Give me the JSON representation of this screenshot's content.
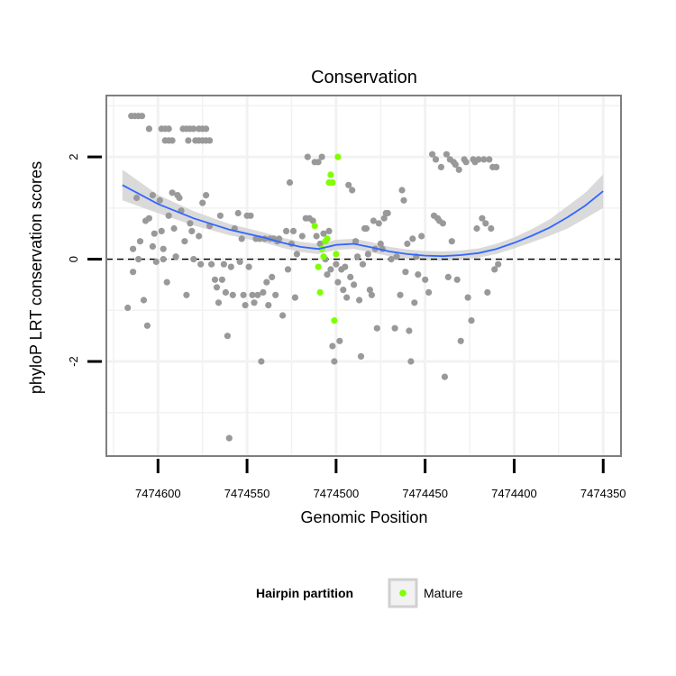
{
  "chart_data": {
    "type": "scatter",
    "title": "Conservation",
    "xlabel": "Genomic Position",
    "ylabel": "phyloP LRT conservation scores",
    "x_reversed": true,
    "xlim": [
      7474629,
      7474340
    ],
    "ylim": [
      -3.85,
      3.2
    ],
    "x_ticks": [
      7474600,
      7474550,
      7474500,
      7474450,
      7474400,
      7474350
    ],
    "x_tick_labels": [
      "7474600",
      "7474550",
      "7474500",
      "7474450",
      "7474400",
      "7474350"
    ],
    "y_ticks": [
      2,
      0,
      -2
    ],
    "y_tick_labels": [
      "2",
      "0",
      "-2"
    ],
    "x_minor_grid": [
      7474625,
      7474575,
      7474525,
      7474475,
      7474425,
      7474375
    ],
    "y_minor_grid": [
      3,
      1,
      -1,
      -3
    ],
    "reference_line": {
      "y": 0,
      "style": "dashed",
      "color": "#000000"
    },
    "legend": {
      "title": "Hairpin partition",
      "position": "bottom",
      "entries": [
        {
          "label": "Mature",
          "color": "#7fff00"
        }
      ]
    },
    "colors": {
      "background_point": "#999999",
      "mature": "#7fff00",
      "smooth": "#3366ff",
      "ribbon": "#d4d4d4",
      "panel_border": "#7f7f7f",
      "grid": "#f2f2f2"
    },
    "series": [
      {
        "name": "",
        "color": "#999999",
        "points": [
          [
            7474615,
            2.8
          ],
          [
            7474613,
            2.8
          ],
          [
            7474611,
            2.8
          ],
          [
            7474609,
            2.8
          ],
          [
            7474605,
            2.55
          ],
          [
            7474598,
            2.55
          ],
          [
            7474596,
            2.55
          ],
          [
            7474594,
            2.55
          ],
          [
            7474596,
            2.32
          ],
          [
            7474594,
            2.32
          ],
          [
            7474592,
            2.32
          ],
          [
            7474586,
            2.55
          ],
          [
            7474584,
            2.55
          ],
          [
            7474582,
            2.55
          ],
          [
            7474580,
            2.55
          ],
          [
            7474577,
            2.55
          ],
          [
            7474575,
            2.55
          ],
          [
            7474573,
            2.55
          ],
          [
            7474583,
            2.32
          ],
          [
            7474579,
            2.32
          ],
          [
            7474577,
            2.32
          ],
          [
            7474575,
            2.32
          ],
          [
            7474573,
            2.32
          ],
          [
            7474571,
            2.32
          ],
          [
            7474617,
            -0.95
          ],
          [
            7474614,
            -0.25
          ],
          [
            7474614,
            0.2
          ],
          [
            7474612,
            1.2
          ],
          [
            7474611,
            0.0
          ],
          [
            7474610,
            0.35
          ],
          [
            7474608,
            -0.8
          ],
          [
            7474607,
            0.75
          ],
          [
            7474606,
            -1.3
          ],
          [
            7474605,
            0.8
          ],
          [
            7474603,
            0.25
          ],
          [
            7474603,
            1.25
          ],
          [
            7474602,
            0.5
          ],
          [
            7474601,
            -0.05
          ],
          [
            7474599,
            1.15
          ],
          [
            7474598,
            0.55
          ],
          [
            7474597,
            0.2
          ],
          [
            7474597,
            0.0
          ],
          [
            7474595,
            -0.45
          ],
          [
            7474594,
            0.85
          ],
          [
            7474592,
            1.3
          ],
          [
            7474591,
            0.6
          ],
          [
            7474590,
            0.05
          ],
          [
            7474589,
            1.25
          ],
          [
            7474588,
            1.2
          ],
          [
            7474587,
            0.95
          ],
          [
            7474585,
            0.35
          ],
          [
            7474584,
            -0.7
          ],
          [
            7474582,
            0.7
          ],
          [
            7474581,
            0.55
          ],
          [
            7474580,
            0.0
          ],
          [
            7474577,
            0.45
          ],
          [
            7474576,
            -0.1
          ],
          [
            7474575,
            1.1
          ],
          [
            7474573,
            1.25
          ],
          [
            7474571,
            0.65
          ],
          [
            7474570,
            -0.1
          ],
          [
            7474568,
            -0.4
          ],
          [
            7474567,
            -0.55
          ],
          [
            7474566,
            -0.85
          ],
          [
            7474565,
            0.85
          ],
          [
            7474564,
            -0.4
          ],
          [
            7474563,
            -0.1
          ],
          [
            7474562,
            -0.65
          ],
          [
            7474561,
            -1.5
          ],
          [
            7474560,
            -3.5
          ],
          [
            7474559,
            -0.15
          ],
          [
            7474558,
            -0.7
          ],
          [
            7474557,
            0.6
          ],
          [
            7474555,
            0.9
          ],
          [
            7474554,
            -0.05
          ],
          [
            7474553,
            0.4
          ],
          [
            7474552,
            -0.7
          ],
          [
            7474551,
            -0.9
          ],
          [
            7474550,
            0.85
          ],
          [
            7474549,
            -0.15
          ],
          [
            7474548,
            0.85
          ],
          [
            7474547,
            -0.7
          ],
          [
            7474546,
            -0.85
          ],
          [
            7474545,
            0.4
          ],
          [
            7474544,
            -0.7
          ],
          [
            7474543,
            0.4
          ],
          [
            7474542,
            -2.0
          ],
          [
            7474541,
            -0.65
          ],
          [
            7474540,
            0.4
          ],
          [
            7474539,
            -0.45
          ],
          [
            7474538,
            -0.9
          ],
          [
            7474537,
            0.4
          ],
          [
            7474536,
            -0.35
          ],
          [
            7474535,
            0.4
          ],
          [
            7474534,
            -0.7
          ],
          [
            7474533,
            0.35
          ],
          [
            7474532,
            0.4
          ],
          [
            7474530,
            -1.1
          ],
          [
            7474528,
            0.55
          ],
          [
            7474527,
            -0.2
          ],
          [
            7474526,
            1.5
          ],
          [
            7474525,
            0.3
          ],
          [
            7474524,
            0.55
          ],
          [
            7474523,
            -0.75
          ],
          [
            7474522,
            0.1
          ],
          [
            7474519,
            0.45
          ],
          [
            7474517,
            0.8
          ],
          [
            7474516,
            2.0
          ],
          [
            7474515,
            0.8
          ],
          [
            7474513,
            0.75
          ],
          [
            7474512,
            1.9
          ],
          [
            7474511,
            0.45
          ],
          [
            7474510,
            1.9
          ],
          [
            7474509,
            0.3
          ],
          [
            7474508,
            2.0
          ],
          [
            7474507,
            0.5
          ],
          [
            7474506,
            0.0
          ],
          [
            7474505,
            -0.3
          ],
          [
            7474504,
            0.55
          ],
          [
            7474503,
            -0.2
          ],
          [
            7474502,
            -1.7
          ],
          [
            7474501,
            -2.0
          ],
          [
            7474500,
            -0.1
          ],
          [
            7474499,
            -0.45
          ],
          [
            7474498,
            -1.6
          ],
          [
            7474497,
            -0.2
          ],
          [
            7474496,
            -0.6
          ],
          [
            7474495,
            -0.15
          ],
          [
            7474494,
            -0.75
          ],
          [
            7474493,
            1.45
          ],
          [
            7474492,
            -0.35
          ],
          [
            7474491,
            1.35
          ],
          [
            7474490,
            -0.5
          ],
          [
            7474489,
            0.35
          ],
          [
            7474488,
            0.05
          ],
          [
            7474487,
            -0.8
          ],
          [
            7474486,
            -1.9
          ],
          [
            7474485,
            -0.1
          ],
          [
            7474484,
            0.6
          ],
          [
            7474483,
            0.6
          ],
          [
            7474482,
            0.1
          ],
          [
            7474481,
            -0.6
          ],
          [
            7474480,
            -0.7
          ],
          [
            7474479,
            0.75
          ],
          [
            7474478,
            0.2
          ],
          [
            7474477,
            -1.35
          ],
          [
            7474476,
            0.7
          ],
          [
            7474475,
            0.3
          ],
          [
            7474474,
            0.2
          ],
          [
            7474473,
            0.8
          ],
          [
            7474472,
            0.9
          ],
          [
            7474471,
            0.9
          ],
          [
            7474469,
            0.0
          ],
          [
            7474467,
            -1.35
          ],
          [
            7474466,
            0.05
          ],
          [
            7474464,
            -0.7
          ],
          [
            7474463,
            1.35
          ],
          [
            7474462,
            1.15
          ],
          [
            7474461,
            -0.25
          ],
          [
            7474460,
            0.3
          ],
          [
            7474459,
            -1.4
          ],
          [
            7474458,
            -2.0
          ],
          [
            7474457,
            0.4
          ],
          [
            7474456,
            -0.85
          ],
          [
            7474455,
            0.05
          ],
          [
            7474454,
            -0.3
          ],
          [
            7474452,
            0.45
          ],
          [
            7474450,
            -0.4
          ],
          [
            7474448,
            -0.65
          ],
          [
            7474446,
            2.05
          ],
          [
            7474445,
            0.85
          ],
          [
            7474444,
            1.95
          ],
          [
            7474443,
            0.8
          ],
          [
            7474442,
            0.75
          ],
          [
            7474441,
            1.8
          ],
          [
            7474440,
            0.7
          ],
          [
            7474439,
            -2.3
          ],
          [
            7474438,
            2.05
          ],
          [
            7474437,
            -0.35
          ],
          [
            7474436,
            1.95
          ],
          [
            7474435,
            0.35
          ],
          [
            7474434,
            1.9
          ],
          [
            7474433,
            1.85
          ],
          [
            7474432,
            -0.4
          ],
          [
            7474431,
            1.75
          ],
          [
            7474430,
            -1.6
          ],
          [
            7474428,
            1.95
          ],
          [
            7474427,
            1.9
          ],
          [
            7474426,
            -0.75
          ],
          [
            7474424,
            -1.2
          ],
          [
            7474423,
            1.95
          ],
          [
            7474422,
            1.9
          ],
          [
            7474421,
            0.6
          ],
          [
            7474420,
            1.95
          ],
          [
            7474418,
            0.8
          ],
          [
            7474417,
            1.95
          ],
          [
            7474416,
            0.7
          ],
          [
            7474415,
            -0.65
          ],
          [
            7474414,
            1.95
          ],
          [
            7474413,
            0.6
          ],
          [
            7474412,
            1.8
          ],
          [
            7474411,
            -0.2
          ],
          [
            7474410,
            1.8
          ],
          [
            7474409,
            -0.1
          ]
        ]
      },
      {
        "name": "Mature",
        "color": "#7fff00",
        "points": [
          [
            7474512,
            0.65
          ],
          [
            7474510,
            -0.15
          ],
          [
            7474509,
            -0.65
          ],
          [
            7474508,
            0.2
          ],
          [
            7474507,
            0.05
          ],
          [
            7474506,
            0.35
          ],
          [
            7474505,
            0.4
          ],
          [
            7474504,
            1.5
          ],
          [
            7474503,
            1.65
          ],
          [
            7474502,
            1.5
          ],
          [
            7474501,
            -1.2
          ],
          [
            7474500,
            0.1
          ],
          [
            7474499,
            2.0
          ]
        ]
      }
    ],
    "smooth": {
      "x": [
        7474620,
        7474600,
        7474580,
        7474560,
        7474540,
        7474530,
        7474520,
        7474510,
        7474500,
        7474490,
        7474480,
        7474470,
        7474460,
        7474450,
        7474440,
        7474430,
        7474420,
        7474410,
        7474400,
        7474390,
        7474380,
        7474370,
        7474360,
        7474350
      ],
      "y": [
        1.45,
        1.08,
        0.8,
        0.58,
        0.42,
        0.32,
        0.24,
        0.2,
        0.28,
        0.3,
        0.23,
        0.15,
        0.1,
        0.07,
        0.06,
        0.08,
        0.12,
        0.2,
        0.32,
        0.46,
        0.62,
        0.82,
        1.05,
        1.33
      ],
      "lower": [
        1.15,
        0.9,
        0.66,
        0.47,
        0.32,
        0.22,
        0.14,
        0.1,
        0.18,
        0.2,
        0.13,
        0.06,
        0.01,
        -0.02,
        -0.03,
        -0.01,
        0.03,
        0.1,
        0.21,
        0.33,
        0.46,
        0.6,
        0.8,
        1.0
      ],
      "upper": [
        1.75,
        1.26,
        0.94,
        0.69,
        0.52,
        0.42,
        0.34,
        0.3,
        0.38,
        0.4,
        0.33,
        0.24,
        0.19,
        0.16,
        0.15,
        0.17,
        0.21,
        0.3,
        0.43,
        0.59,
        0.78,
        1.04,
        1.3,
        1.66
      ]
    }
  }
}
